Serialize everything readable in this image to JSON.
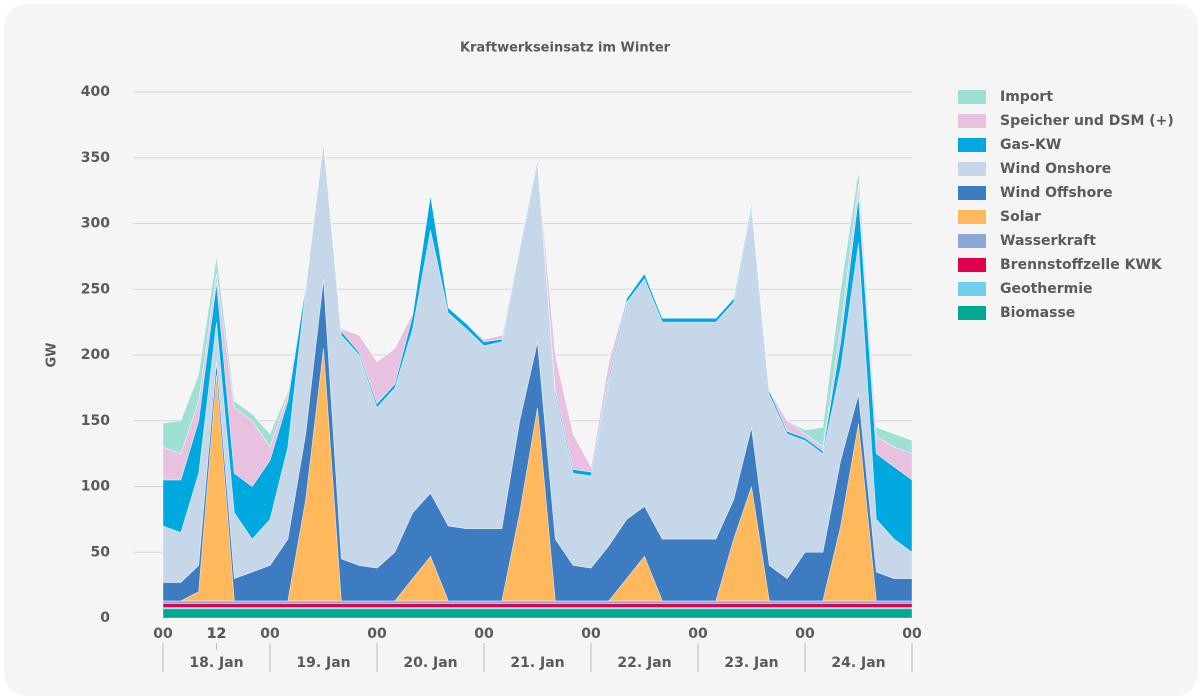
{
  "chart_data": {
    "type": "stacked_area",
    "title": "Kraftwerkseinsatz im Winter",
    "ylabel": "GW",
    "x": [
      0,
      4,
      8,
      12,
      16,
      20,
      24,
      28,
      32,
      36,
      40,
      44,
      48,
      52,
      56,
      60,
      64,
      68,
      72,
      76,
      80,
      84,
      88,
      92,
      96,
      100,
      104,
      108,
      112,
      116,
      120,
      124,
      128,
      132,
      136,
      140,
      144,
      148,
      152,
      156,
      160,
      164,
      168
    ],
    "xlim": [
      0,
      168
    ],
    "xticks": [
      {
        "value": 0,
        "label": "00"
      },
      12,
      {
        "value": 24,
        "label": "00"
      },
      12,
      {
        "value": 48,
        "label": "00"
      },
      12,
      {
        "value": 72,
        "label": "00"
      },
      12,
      {
        "value": 96,
        "label": "00"
      },
      12,
      {
        "value": 120,
        "label": "00"
      },
      12,
      {
        "value": 144,
        "label": "00"
      },
      12,
      {
        "value": 168,
        "label": "00"
      }
    ],
    "x_groups": [
      {
        "label": "18. Jan",
        "start": 0,
        "end": 24
      },
      {
        "label": "19. Jan",
        "start": 24,
        "end": 48
      },
      {
        "label": "20. Jan",
        "start": 48,
        "end": 72
      },
      {
        "label": "21. Jan",
        "start": 72,
        "end": 96
      },
      {
        "label": "22. Jan",
        "start": 96,
        "end": 120
      },
      {
        "label": "23. Jan",
        "start": 120,
        "end": 144
      },
      {
        "label": "24. Jan",
        "start": 144,
        "end": 168
      }
    ],
    "ylim": [
      0,
      400
    ],
    "yticks": [
      0,
      50,
      100,
      150,
      200,
      250,
      300,
      350,
      400
    ],
    "grid": true,
    "legend": "right",
    "series": [
      {
        "name": "Biomasse",
        "color": "#00a98f",
        "values": [
          7,
          7,
          7,
          7,
          7,
          7,
          7,
          7,
          7,
          7,
          7,
          7,
          7,
          7,
          7,
          7,
          7,
          7,
          7,
          7,
          7,
          7,
          7,
          7,
          7,
          7,
          7,
          7,
          7,
          7,
          7,
          7,
          7,
          7,
          7,
          7,
          7,
          7,
          7,
          7,
          7,
          7,
          7
        ]
      },
      {
        "name": "Geothermie",
        "color": "#6fcfeb",
        "values": [
          1,
          1,
          1,
          1,
          1,
          1,
          1,
          1,
          1,
          1,
          1,
          1,
          1,
          1,
          1,
          1,
          1,
          1,
          1,
          1,
          1,
          1,
          1,
          1,
          1,
          1,
          1,
          1,
          1,
          1,
          1,
          1,
          1,
          1,
          1,
          1,
          1,
          1,
          1,
          1,
          1,
          1,
          1
        ]
      },
      {
        "name": "Brennstoffzelle KWK",
        "color": "#e0004d",
        "values": [
          3,
          3,
          3,
          3,
          3,
          3,
          3,
          3,
          3,
          3,
          3,
          3,
          3,
          3,
          3,
          3,
          3,
          3,
          3,
          3,
          3,
          3,
          3,
          3,
          3,
          3,
          3,
          3,
          3,
          3,
          3,
          3,
          3,
          3,
          3,
          3,
          3,
          3,
          3,
          3,
          3,
          3,
          3
        ]
      },
      {
        "name": "Wasserkraft",
        "color": "#8aa9d6",
        "values": [
          2,
          2,
          2,
          2,
          2,
          2,
          2,
          2,
          2,
          2,
          2,
          2,
          2,
          2,
          2,
          2,
          2,
          2,
          2,
          2,
          2,
          2,
          2,
          2,
          2,
          2,
          2,
          2,
          2,
          2,
          2,
          2,
          2,
          2,
          2,
          2,
          2,
          2,
          2,
          2,
          2,
          2,
          2
        ]
      },
      {
        "name": "Solar",
        "color": "#ffb85c",
        "values": [
          0,
          0,
          7,
          172,
          0,
          0,
          0,
          0,
          77,
          192,
          0,
          0,
          0,
          0,
          17,
          34,
          0,
          0,
          0,
          0,
          67,
          147,
          0,
          0,
          0,
          0,
          17,
          34,
          0,
          0,
          0,
          0,
          47,
          87,
          0,
          0,
          0,
          0,
          57,
          135,
          0,
          0,
          0
        ]
      },
      {
        "name": "Wind Offshore",
        "color": "#3d7cc0",
        "values": [
          14,
          14,
          20,
          10,
          17,
          22,
          27,
          47,
          50,
          53,
          32,
          27,
          25,
          37,
          50,
          48,
          57,
          55,
          55,
          55,
          70,
          50,
          47,
          27,
          25,
          42,
          45,
          38,
          47,
          47,
          47,
          47,
          30,
          45,
          27,
          17,
          37,
          37,
          50,
          22,
          22,
          17,
          17
        ]
      },
      {
        "name": "Wind Onshore",
        "color": "#c7d7ea",
        "values": [
          43,
          38,
          70,
          30,
          50,
          25,
          35,
          70,
          110,
          104,
          170,
          160,
          122,
          125,
          140,
          200,
          162,
          152,
          139,
          142,
          130,
          135,
          110,
          70,
          70,
          125,
          165,
          173,
          165,
          165,
          165,
          165,
          150,
          167,
          130,
          110,
          85,
          75,
          70,
          115,
          40,
          30,
          20
        ]
      },
      {
        "name": "Gas-KW",
        "color": "#00a8e0",
        "values": [
          35,
          40,
          40,
          30,
          30,
          40,
          45,
          35,
          2,
          1,
          3,
          2,
          3,
          3,
          10,
          27,
          4,
          4,
          3,
          2,
          2,
          3,
          3,
          3,
          3,
          3,
          3,
          4,
          3,
          3,
          3,
          3,
          3,
          3,
          3,
          2,
          2,
          2,
          20,
          35,
          50,
          55,
          55
        ]
      },
      {
        "name": "Speicher und DSM (+)",
        "color": "#e8c0e0",
        "values": [
          25,
          20,
          15,
          7,
          50,
          50,
          10,
          5,
          1,
          0,
          2,
          13,
          32,
          27,
          2,
          0,
          0,
          0,
          2,
          3,
          0,
          0,
          27,
          27,
          4,
          12,
          0,
          0,
          0,
          0,
          0,
          0,
          0,
          0,
          0,
          8,
          3,
          3,
          10,
          10,
          13,
          15,
          20
        ]
      },
      {
        "name": "Import",
        "color": "#9fe0d4",
        "values": [
          18,
          25,
          20,
          13,
          5,
          5,
          10,
          2,
          1,
          1,
          0,
          0,
          0,
          0,
          0,
          0,
          0,
          0,
          0,
          0,
          0,
          0,
          0,
          0,
          0,
          0,
          0,
          0,
          0,
          0,
          0,
          0,
          0,
          0,
          0,
          0,
          3,
          15,
          30,
          10,
          7,
          10,
          10
        ]
      }
    ]
  }
}
